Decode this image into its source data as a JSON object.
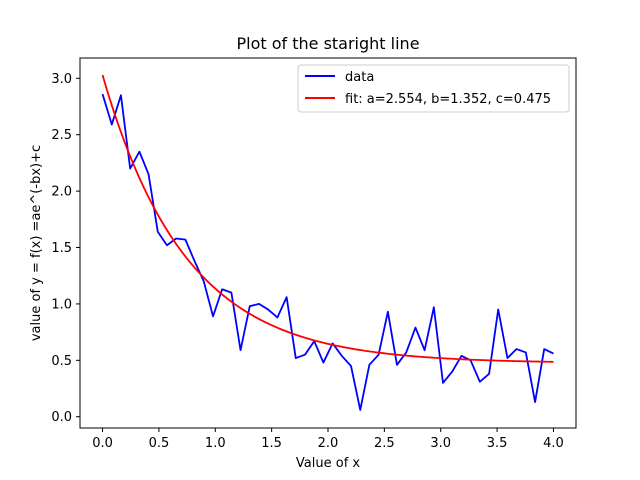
{
  "chart_data": {
    "type": "line",
    "title": "Plot of the staright line",
    "xlabel": "Value of x",
    "ylabel": "value of y = f(x) =ae^(-bx)+c",
    "xlim": [
      -0.2,
      4.2
    ],
    "ylim": [
      -0.1,
      3.18
    ],
    "xticks": [
      0.0,
      0.5,
      1.0,
      1.5,
      2.0,
      2.5,
      3.0,
      3.5,
      4.0
    ],
    "xtick_labels": [
      "0.0",
      "0.5",
      "1.0",
      "1.5",
      "2.0",
      "2.5",
      "3.0",
      "3.5",
      "4.0"
    ],
    "yticks": [
      0.0,
      0.5,
      1.0,
      1.5,
      2.0,
      2.5,
      3.0
    ],
    "ytick_labels": [
      "0.0",
      "0.5",
      "1.0",
      "1.5",
      "2.0",
      "2.5",
      "3.0"
    ],
    "grid": false,
    "legend_position": "top-right",
    "series": [
      {
        "name": "data",
        "color": "#0000ff",
        "x": [
          0.0,
          0.082,
          0.163,
          0.245,
          0.327,
          0.408,
          0.49,
          0.571,
          0.653,
          0.735,
          0.816,
          0.898,
          0.98,
          1.061,
          1.143,
          1.224,
          1.306,
          1.388,
          1.469,
          1.551,
          1.633,
          1.714,
          1.796,
          1.878,
          1.959,
          2.041,
          2.122,
          2.204,
          2.286,
          2.367,
          2.449,
          2.531,
          2.612,
          2.694,
          2.776,
          2.857,
          2.939,
          3.02,
          3.102,
          3.184,
          3.265,
          3.347,
          3.429,
          3.51,
          3.592,
          3.673,
          3.755,
          3.837,
          3.918,
          4.0
        ],
        "y": [
          2.86,
          2.59,
          2.85,
          2.2,
          2.35,
          2.15,
          1.64,
          1.52,
          1.58,
          1.57,
          1.38,
          1.2,
          0.89,
          1.13,
          1.1,
          0.59,
          0.98,
          1.0,
          0.95,
          0.88,
          1.06,
          0.52,
          0.55,
          0.67,
          0.48,
          0.65,
          0.54,
          0.45,
          0.06,
          0.46,
          0.55,
          0.93,
          0.46,
          0.57,
          0.79,
          0.59,
          0.97,
          0.3,
          0.4,
          0.54,
          0.5,
          0.31,
          0.38,
          0.95,
          0.52,
          0.6,
          0.57,
          0.13,
          0.6,
          0.56
        ]
      },
      {
        "name": "fit: a=2.554, b=1.352, c=0.475",
        "color": "#ff0000",
        "a": 2.554,
        "b": 1.352,
        "c": 0.475
      }
    ]
  }
}
